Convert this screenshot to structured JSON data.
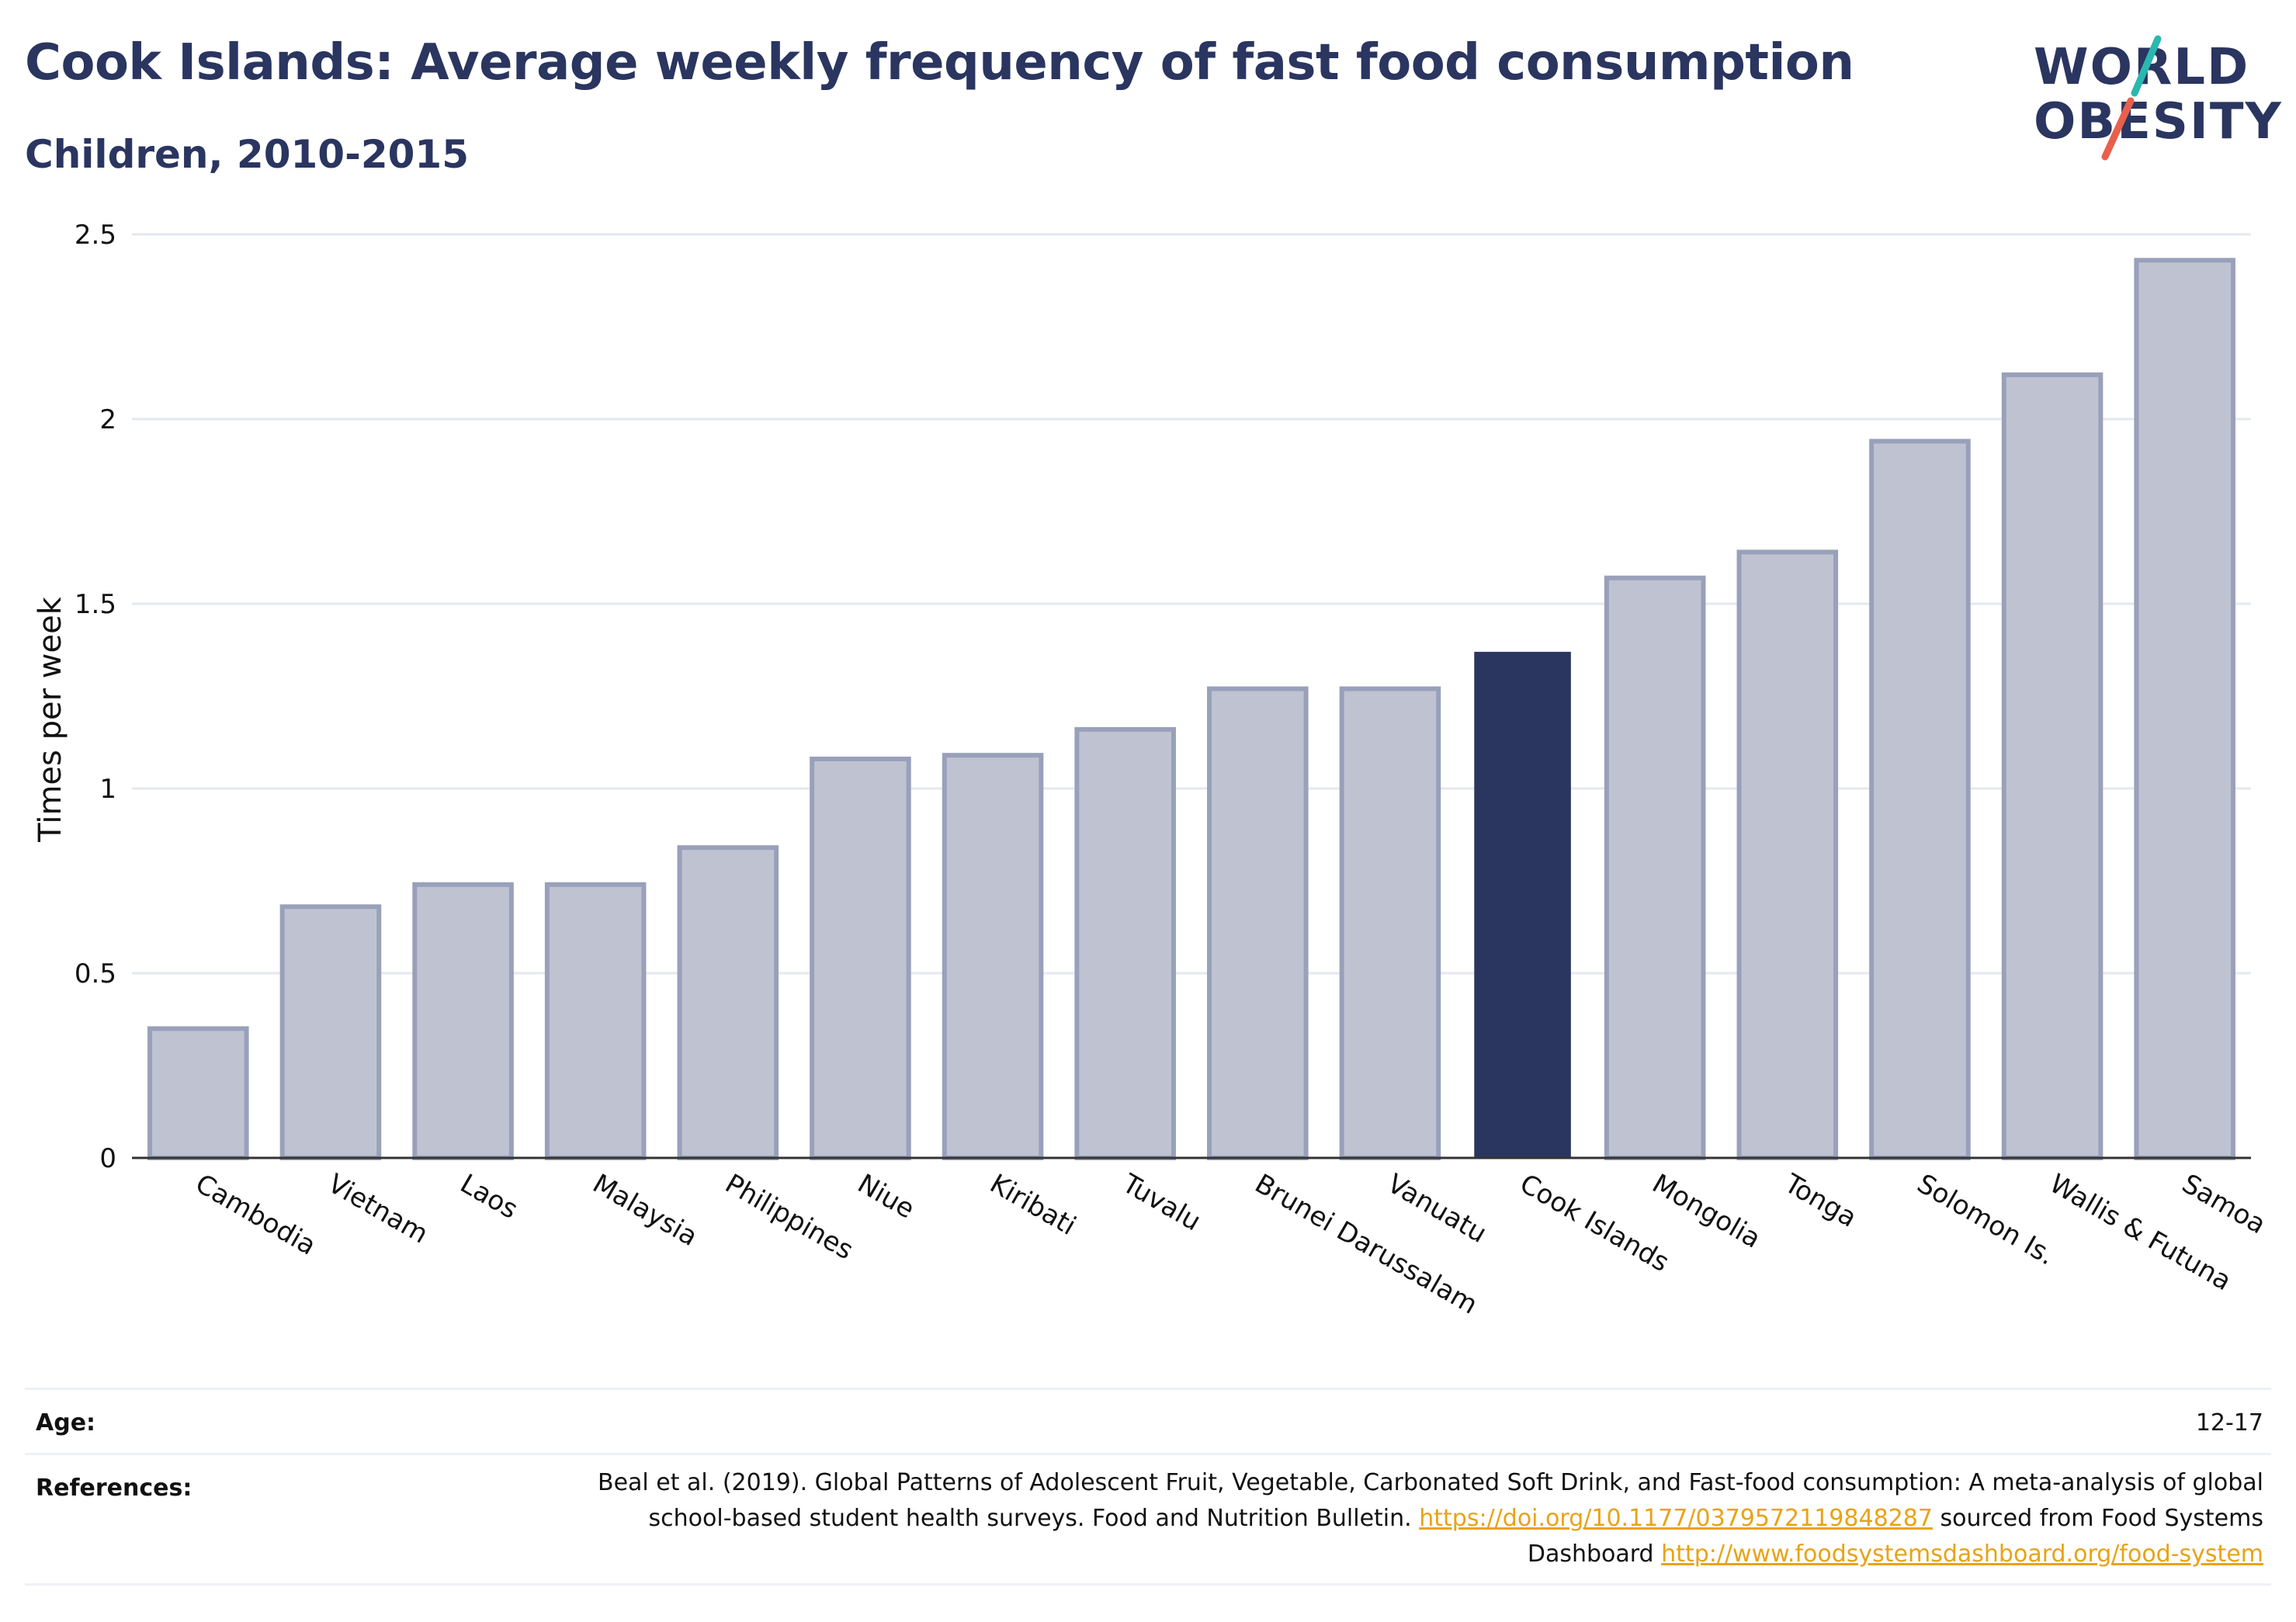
{
  "header": {
    "title": "Cook Islands: Average weekly frequency of fast food consumption",
    "subtitle": "Children, 2010-2015"
  },
  "logo": {
    "line1": "WORLD",
    "line2": "OBESITY",
    "accent_colors": [
      "#2ab7b0",
      "#e8604c"
    ]
  },
  "chart_data": {
    "type": "bar",
    "title": "Cook Islands: Average weekly frequency of fast food consumption",
    "subtitle": "Children, 2010-2015",
    "xlabel": "",
    "ylabel": "Times per week",
    "ylim": [
      0,
      2.5
    ],
    "yticks": [
      0,
      0.5,
      1,
      1.5,
      2,
      2.5
    ],
    "ytick_labels": [
      "0",
      "0.5",
      "1",
      "1.5",
      "2",
      "2.5"
    ],
    "grid": true,
    "categories": [
      "Cambodia",
      "Vietnam",
      "Laos",
      "Malaysia",
      "Philippines",
      "Niue",
      "Kiribati",
      "Tuvalu",
      "Brunei Darussalam",
      "Vanuatu",
      "Cook Islands",
      "Mongolia",
      "Tonga",
      "Solomon Is.",
      "Wallis & Futuna",
      "Samoa"
    ],
    "values": [
      0.35,
      0.68,
      0.74,
      0.74,
      0.84,
      1.08,
      1.09,
      1.16,
      1.27,
      1.27,
      1.37,
      1.57,
      1.64,
      1.94,
      2.12,
      2.43
    ],
    "highlight": "Cook Islands",
    "colors": {
      "default_fill": "#bfc3d1",
      "default_stroke": "#99a0ba",
      "highlight_fill": "#2a3560",
      "grid": "#e6e8f0",
      "axis": "#333333"
    }
  },
  "meta": {
    "age_label": "Age:",
    "age_value": "12-17",
    "references_label": "References:",
    "reference_text_1": "Beal et al. (2019). Global Patterns of Adolescent Fruit, Vegetable, Carbonated Soft Drink, and Fast-food consumption: A meta-analysis of global school-based student health surveys. Food and Nutrition Bulletin.",
    "reference_link_1": "https://doi.org/10.1177/0379572119848287",
    "reference_text_2": "sourced from Food Systems Dashboard",
    "reference_link_2": "http://www.foodsystemsdashboard.org/food-system"
  }
}
